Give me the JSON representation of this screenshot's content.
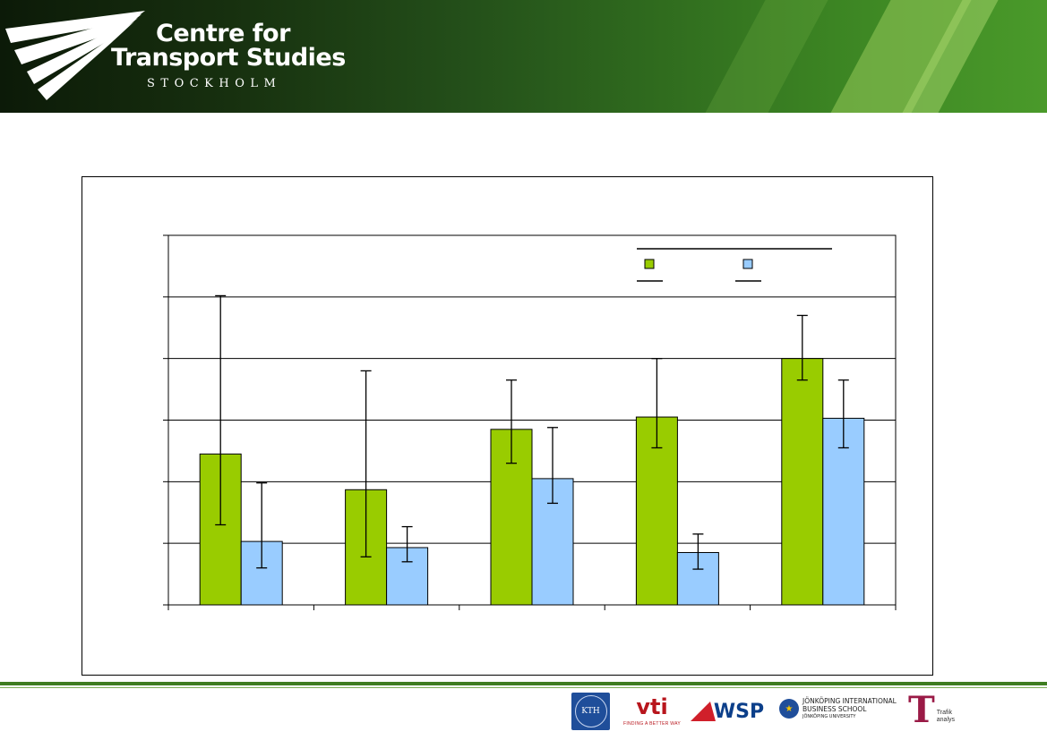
{
  "header": {
    "title_line1": "Centre for",
    "title_line2": "Transport Studies",
    "subtitle": "STOCKHOLM"
  },
  "chart_data": {
    "type": "bar",
    "title": "",
    "xlabel": "",
    "ylabel": "",
    "categories": [
      "",
      "",
      "",
      "",
      ""
    ],
    "ylim": [
      0,
      6
    ],
    "grid": true,
    "legend_position": "top-right",
    "series": [
      {
        "name": "",
        "color": "#99cc00",
        "values": [
          2.45,
          1.87,
          2.85,
          3.05,
          4.0
        ],
        "error_low": [
          1.3,
          0.78,
          2.3,
          2.55,
          3.65
        ],
        "error_high": [
          5.02,
          3.8,
          3.65,
          4.0,
          4.7
        ]
      },
      {
        "name": "",
        "color": "#99ccff",
        "values": [
          1.03,
          0.93,
          2.05,
          0.85,
          3.03
        ],
        "error_low": [
          0.6,
          0.7,
          1.65,
          0.58,
          2.55
        ],
        "error_high": [
          1.98,
          1.27,
          2.88,
          1.15,
          3.65
        ]
      }
    ]
  },
  "partners": {
    "kth": "KTH",
    "vti": "vti",
    "vti_tagline": "FINDING A BETTER WAY",
    "wsp": "WSP",
    "jibs_line1": "JÖNKÖPING INTERNATIONAL",
    "jibs_line2": "BUSINESS SCHOOL",
    "jibs_line3": "JÖNKÖPING UNIVERSITY",
    "trafik_line1": "Trafik",
    "trafik_line2": "analys"
  }
}
